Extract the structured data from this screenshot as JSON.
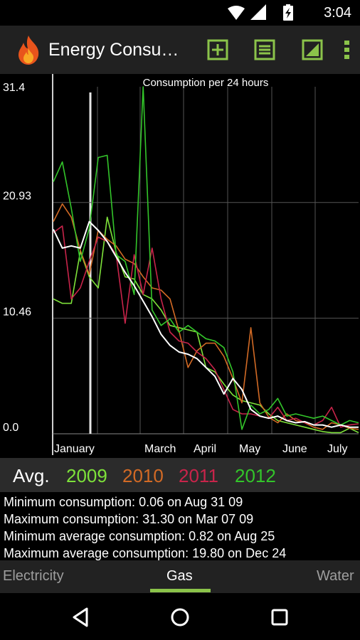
{
  "status_bar": {
    "time": "3:04"
  },
  "app_bar": {
    "title": "Energy Consu…",
    "icons": [
      "flame-icon",
      "add-entry-icon",
      "list-icon",
      "chart-icon",
      "overflow-menu-icon"
    ]
  },
  "chart_data": {
    "type": "line",
    "title": "Consumption per 24 hours",
    "ylim": [
      0,
      31.4
    ],
    "y_ticks": [
      "31.4",
      "20.93",
      "10.46",
      "0.0"
    ],
    "month_labels": [
      "January",
      "March",
      "April",
      "May",
      "June",
      "July"
    ],
    "grid": true,
    "series": [
      {
        "name": "2009",
        "color": "#7ee23a",
        "values": [
          12.2,
          11.8,
          11.8,
          16.5,
          14.2,
          13.2,
          19.6,
          16.4,
          14.2,
          14.0,
          12.6,
          12.2,
          11.2,
          9.8,
          9.6,
          9.4,
          9.2,
          6.0,
          5.6,
          4.5,
          3.5,
          3.0,
          2.8,
          2.6,
          1.8,
          1.2,
          1.0,
          0.8,
          0.6,
          0.4,
          0.2,
          0.1,
          0.1,
          0.5,
          0.1
        ]
      },
      {
        "name": "2010",
        "color": "#d26a25",
        "values": [
          19.2,
          20.8,
          19.6,
          16.6,
          14.4,
          18.4,
          17.6,
          17.0,
          15.8,
          15.4,
          14.2,
          13.2,
          13.0,
          12.2,
          9.3,
          6.0,
          7.5,
          8.2,
          8.2,
          7.0,
          5.0,
          2.8,
          9.6,
          2.8,
          1.5,
          1.0,
          1.8,
          1.2,
          1.0,
          0.6,
          0.4,
          1.0,
          0.8,
          0.5,
          0.4
        ]
      },
      {
        "name": "2011",
        "color": "#c8244a",
        "values": [
          18.2,
          18.8,
          12.2,
          13.2,
          15.6,
          17.8,
          17.4,
          16.2,
          10.0,
          16.2,
          12.6,
          16.8,
          12.2,
          9.2,
          8.4,
          8.2,
          7.4,
          6.8,
          5.8,
          4.0,
          2.2,
          1.8,
          1.8,
          1.6,
          1.4,
          2.4,
          1.2,
          1.4,
          1.0,
          0.8,
          1.2,
          2.4,
          0.6,
          0.8,
          0.9
        ]
      },
      {
        "name": "2012",
        "color": "#33c52a",
        "values": [
          22.8,
          24.6,
          20.4,
          15.6,
          18.6,
          25.0,
          25.2,
          16.2,
          15.6,
          12.6,
          31.4,
          11.2,
          9.8,
          10.4,
          9.2,
          9.8,
          9.2,
          8.6,
          8.4,
          7.8,
          5.6,
          0.4,
          2.6,
          1.8,
          2.2,
          3.2,
          1.6,
          1.8,
          1.6,
          1.4,
          1.6,
          1.2,
          0.8,
          1.2,
          1.0
        ]
      },
      {
        "name": "Avg.",
        "color": "#ffffff",
        "values": [
          18.5,
          16.8,
          17.0,
          16.8,
          19.2,
          18.4,
          17.4,
          16.0,
          14.6,
          13.4,
          12.0,
          10.6,
          9.0,
          8.0,
          7.4,
          7.2,
          6.8,
          6.0,
          5.2,
          3.6,
          5.0,
          4.0,
          2.2,
          1.6,
          1.4,
          1.6,
          1.2,
          1.0,
          1.1,
          0.8,
          0.8,
          0.6,
          0.8,
          0.6,
          0.6
        ]
      }
    ]
  },
  "legend": {
    "avg": "Avg.",
    "y2009": "2009",
    "y2010": "2010",
    "y2011": "2011",
    "y2012": "2012",
    "colors": {
      "avg": "#ffffff",
      "y2009": "#7ee23a",
      "y2010": "#d26a25",
      "y2011": "#c8244a",
      "y2012": "#33c52a"
    }
  },
  "stats": {
    "min": "Minimum consumption: 0.06 on Aug 31 09",
    "max": "Maximum consumption: 31.30 on Mar 07 09",
    "min_avg": "Minimum average consumption: 0.82 on Aug 25",
    "max_avg": "Maximum average consumption: 19.80 on Dec 24"
  },
  "tabs": {
    "electricity": "Electricity",
    "gas": "Gas",
    "water": "Water",
    "selected": "Gas"
  },
  "nav": {
    "icons": [
      "back-icon",
      "home-icon",
      "recents-icon"
    ]
  },
  "theme": {
    "accent": "#8bc34a",
    "appbar_bg": "#212121",
    "legend_bg": "#2b2b2b"
  }
}
